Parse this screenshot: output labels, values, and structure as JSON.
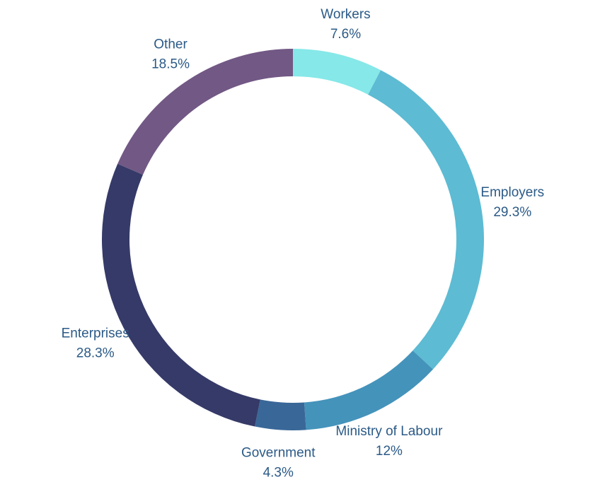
{
  "chart_data": {
    "type": "pie",
    "variant": "donut",
    "legend": "none",
    "slices": [
      {
        "label": "Workers",
        "value": 7.6,
        "value_label": "7.6%",
        "color": "#86e8e8"
      },
      {
        "label": "Employers",
        "value": 29.3,
        "value_label": "29.3%",
        "color": "#5dbbd3"
      },
      {
        "label": "Ministry of Labour",
        "value": 12,
        "value_label": "12%",
        "color": "#4493bb"
      },
      {
        "label": "Government",
        "value": 4.3,
        "value_label": "4.3%",
        "color": "#396798"
      },
      {
        "label": "Enterprises",
        "value": 28.3,
        "value_label": "28.3%",
        "color": "#353a68"
      },
      {
        "label": "Other",
        "value": 18.5,
        "value_label": "18.5%",
        "color": "#725885"
      }
    ]
  },
  "style": {
    "label_color": "#2b5a87",
    "background": "#ffffff"
  }
}
